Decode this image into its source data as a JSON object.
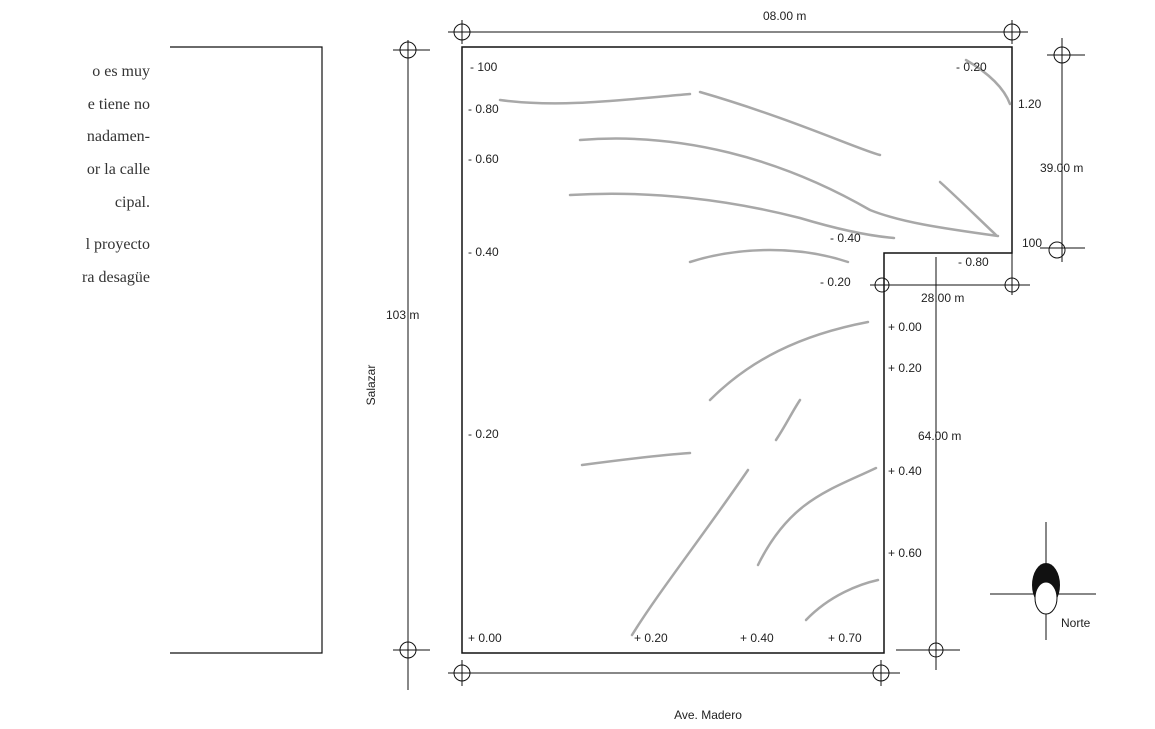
{
  "left_text": [
    "o es muy",
    "e tiene no",
    "nadamen-",
    "or la calle",
    "cipal.",
    "l proyecto",
    "ra desagüe"
  ],
  "dimensions": {
    "top_width": "08.00 m",
    "right_upper": "39.00 m",
    "notch_width": "28.00 m",
    "right_lower": "64.00 m",
    "left_height": "103 m"
  },
  "streets": {
    "west": "Salazar",
    "south": "Ave. Madero"
  },
  "north_label": "Norte",
  "levels": {
    "tl": "- 100",
    "tr": "- 0.20",
    "r1": "1.20",
    "r2": "100",
    "l1": "- 0.80",
    "l2": "- 0.60",
    "l3": "- 0.40",
    "l4": "- 0.20",
    "notch_a": "- 0.40",
    "notch_b": "- 0.80",
    "notch_c": "- 0.20",
    "e1": "+ 0.00",
    "e2": "+ 0.20",
    "e3": "+ 0.40",
    "e4": "+ 0.60",
    "b1": "+ 0.00",
    "b2": "+ 0.20",
    "b3": "+ 0.40",
    "b4": "+ 0.70"
  },
  "colors": {
    "line": "#111111",
    "contour": "#9a9a9a",
    "text_serif": "#333333"
  }
}
